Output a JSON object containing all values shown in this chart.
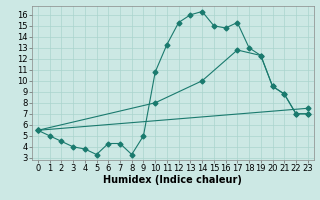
{
  "xlabel": "Humidex (Indice chaleur)",
  "bg_color": "#cce8e4",
  "line_color": "#1a7a6e",
  "grid_color": "#aad4ce",
  "xlim": [
    -0.5,
    23.5
  ],
  "ylim": [
    2.8,
    16.8
  ],
  "xticks": [
    0,
    1,
    2,
    3,
    4,
    5,
    6,
    7,
    8,
    9,
    10,
    11,
    12,
    13,
    14,
    15,
    16,
    17,
    18,
    19,
    20,
    21,
    22,
    23
  ],
  "yticks": [
    3,
    4,
    5,
    6,
    7,
    8,
    9,
    10,
    11,
    12,
    13,
    14,
    15,
    16
  ],
  "line1_x": [
    0,
    1,
    2,
    3,
    4,
    5,
    6,
    7,
    8,
    9,
    10,
    11,
    12,
    13,
    14,
    15,
    16,
    17,
    18,
    19,
    20,
    21,
    22,
    23
  ],
  "line1_y": [
    5.5,
    5.0,
    4.5,
    4.0,
    3.8,
    3.3,
    4.3,
    4.3,
    3.3,
    5.0,
    10.8,
    13.3,
    15.3,
    16.0,
    16.3,
    15.0,
    14.8,
    15.3,
    13.0,
    12.3,
    9.5,
    8.8,
    7.0,
    7.0
  ],
  "line2_x": [
    0,
    10,
    14,
    17,
    19,
    20,
    21,
    22,
    23
  ],
  "line2_y": [
    5.5,
    8.0,
    10.0,
    12.8,
    12.3,
    9.5,
    8.8,
    7.0,
    7.0
  ],
  "line3_x": [
    0,
    23
  ],
  "line3_y": [
    5.5,
    7.5
  ],
  "fontsize_xlabel": 7,
  "tick_fontsize": 6,
  "marker_size": 2.5
}
